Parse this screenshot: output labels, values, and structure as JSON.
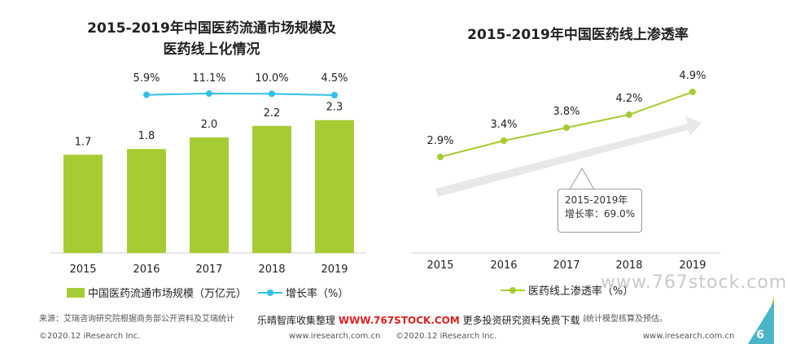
{
  "chart_data": [
    {
      "type": "bar",
      "title": "2015-2019年中国医药流通市场规模及医药线上化情况",
      "categories": [
        "2015",
        "2016",
        "2017",
        "2018",
        "2019"
      ],
      "series": [
        {
          "name": "中国医药流通市场规模（万亿元）",
          "type": "bar",
          "values": [
            1.7,
            1.8,
            2.0,
            2.2,
            2.3
          ],
          "labels": [
            "1.7",
            "1.8",
            "2.0",
            "2.2",
            "2.3"
          ],
          "color": "#a6cc33"
        },
        {
          "name": "增长率（%）",
          "type": "line",
          "values": [
            null,
            5.9,
            11.1,
            10.0,
            4.5
          ],
          "labels": [
            "",
            "5.9%",
            "11.1%",
            "10.0%",
            "4.5%"
          ],
          "color": "#33bfe5"
        }
      ]
    },
    {
      "type": "line",
      "title": "2015-2019年中国医药线上渗透率",
      "categories": [
        "2015",
        "2016",
        "2017",
        "2018",
        "2019"
      ],
      "series": [
        {
          "name": "医药线上渗透率（%）",
          "values": [
            2.9,
            3.4,
            3.8,
            4.2,
            4.9
          ],
          "labels": [
            "2.9%",
            "3.4%",
            "3.8%",
            "4.2%",
            "4.9%"
          ],
          "color": "#a6cc33"
        }
      ],
      "annotation": {
        "line1": "2015-2019年",
        "line2": "增长率：69.0%"
      }
    }
  ],
  "left": {
    "title_line1": "2015-2019年中国医药流通市场规模及",
    "title_line2": "医药线上化情况",
    "legend_bar": "中国医药流通市场规模（万亿元）",
    "legend_line": "增长率（%）"
  },
  "right": {
    "title": "2015-2019年中国医药线上渗透率",
    "legend_line": "医药线上渗透率（%）",
    "callout_line1": "2015-2019年",
    "callout_line2": "增长率：69.0%"
  },
  "footer": {
    "source_left": "来源：艾瑞咨询研究院根据商务部公开资料及艾瑞统计",
    "source_right": "及艾瑞统计模型核算及预估。",
    "copyright_left": "©2020.12 iResearch Inc.",
    "url_left": "www.iresearch.com.cn",
    "copyright_right": "©2020.12 iResearch Inc.",
    "url_right": "www.iresearch.com.cn",
    "page": "6"
  },
  "banner": {
    "prefix": "乐晴智库收集整理",
    "site": "WWW.767STOCK.COM",
    "suffix": "更多投资研究资料免费下载"
  },
  "watermark": "www.767stock.com"
}
